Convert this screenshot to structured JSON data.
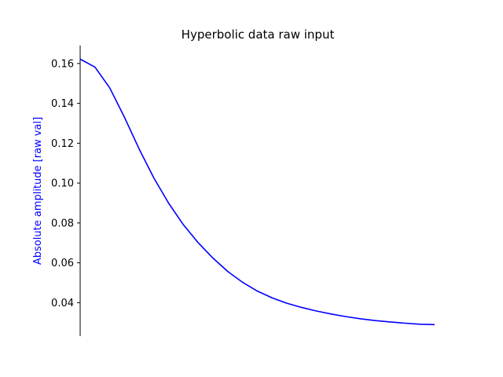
{
  "chart_data": {
    "type": "line",
    "title": "Hyperbolic data raw input",
    "xlabel": "",
    "ylabel": "Absolute amplitude [raw val]",
    "ylabel_color": "#0000ff",
    "ylim": [
      0.0232,
      0.169
    ],
    "xlim": [
      0,
      24
    ],
    "yticks": [
      0.04,
      0.06,
      0.08,
      0.1,
      0.12,
      0.14,
      0.16
    ],
    "ytick_labels": [
      "0.04",
      "0.06",
      "0.08",
      "0.10",
      "0.12",
      "0.14",
      "0.16"
    ],
    "grid": false,
    "x_axis_visible": false,
    "series": [
      {
        "color": "#0000ff",
        "x": [
          0,
          1,
          2,
          3,
          4,
          5,
          6,
          7,
          8,
          9,
          10,
          11,
          12,
          13,
          14,
          15,
          16,
          17,
          18,
          19,
          20,
          21,
          22,
          23,
          24
        ],
        "y": [
          0.1622,
          0.1582,
          0.1478,
          0.133,
          0.117,
          0.1024,
          0.0898,
          0.079,
          0.07,
          0.0623,
          0.0556,
          0.0502,
          0.0458,
          0.0424,
          0.0397,
          0.0376,
          0.0358,
          0.0343,
          0.033,
          0.0319,
          0.031,
          0.0303,
          0.0297,
          0.0292,
          0.029
        ]
      }
    ]
  }
}
